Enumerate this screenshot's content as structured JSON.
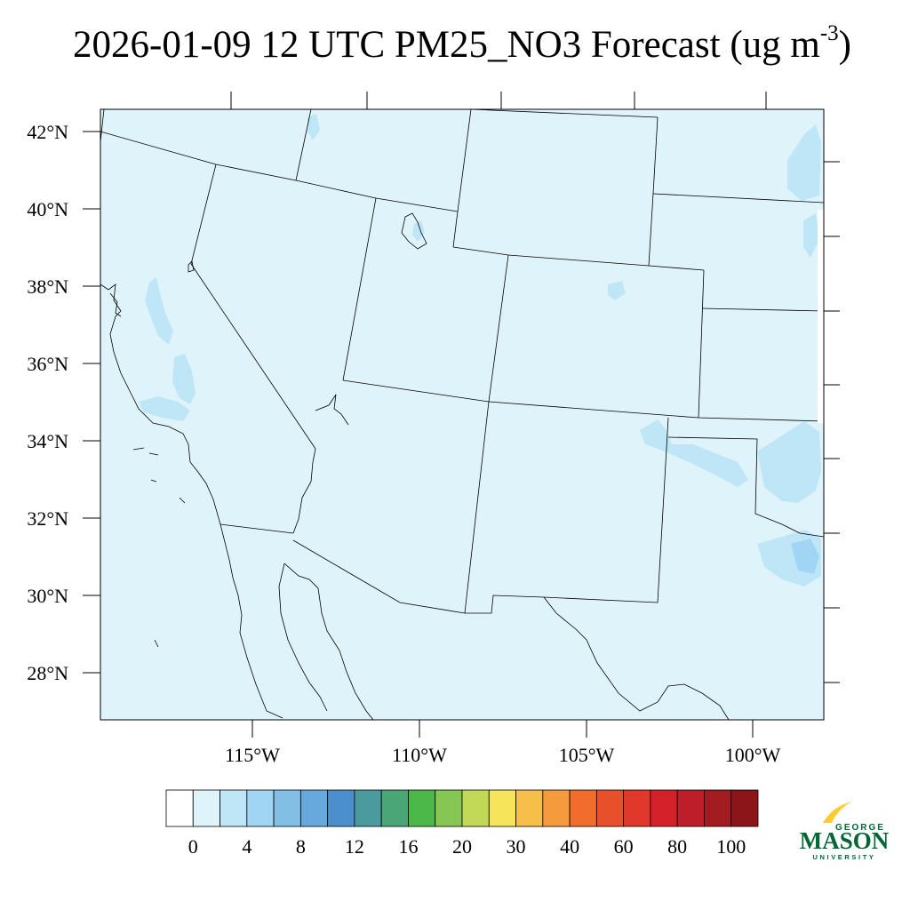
{
  "title": {
    "main": "2026-01-09 12 UTC PM25_NO3 Forecast (ug m",
    "sup": "-3",
    "close": ")"
  },
  "map": {
    "region": "Southwestern United States and northwestern Mexico",
    "background_color": "#dff3fb",
    "lat_ticks": [
      "42°N",
      "40°N",
      "38°N",
      "36°N",
      "34°N",
      "32°N",
      "30°N",
      "28°N"
    ],
    "lon_ticks": [
      "115°W",
      "110°W",
      "105°W",
      "100°W"
    ]
  },
  "colorbar": {
    "colors": [
      "#ffffff",
      "#dff3fb",
      "#bfe6f7",
      "#a0d6f3",
      "#83bfe5",
      "#67a9dc",
      "#4b8fcd",
      "#4a9a9e",
      "#4aa676",
      "#4db84a",
      "#86c653",
      "#c2d957",
      "#f6e55a",
      "#f6bf4a",
      "#f59a3d",
      "#f26c2b",
      "#e8502b",
      "#e0392b",
      "#d52129",
      "#be1e2a",
      "#a31c22",
      "#8c1519"
    ],
    "labels": [
      "0",
      "4",
      "8",
      "12",
      "16",
      "20",
      "30",
      "40",
      "60",
      "80",
      "100"
    ]
  },
  "logo": {
    "line1": "GEORGE",
    "line2": "MASON",
    "line3": "UNIVERSITY",
    "green": "#006633",
    "gold": "#ffcc33"
  }
}
